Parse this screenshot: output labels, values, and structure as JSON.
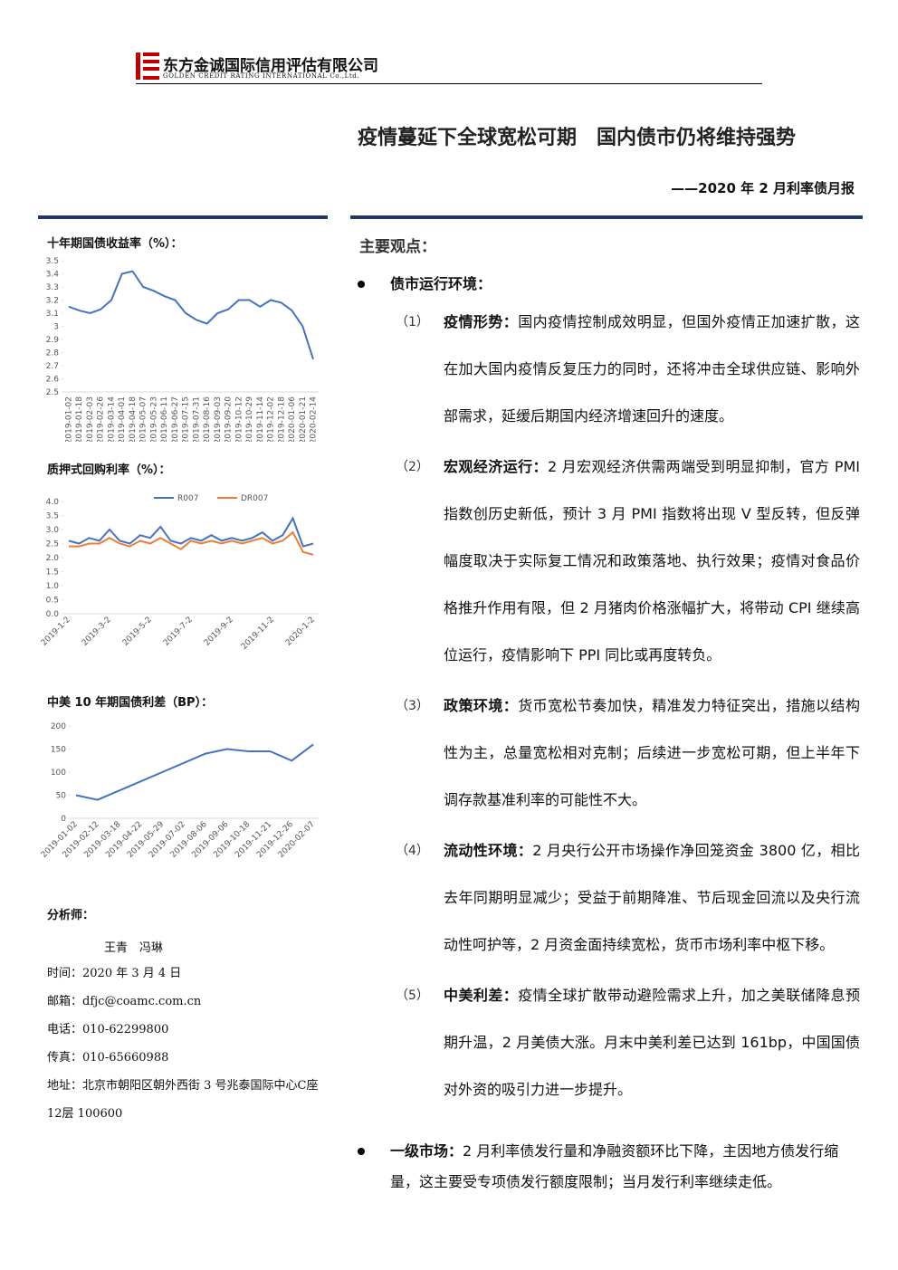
{
  "header": {
    "company_cn": "东方金诚国际信用评估有限公司",
    "company_en": "GOLDEN CREDIT RATING INTERNATIONAL Co.,Ltd."
  },
  "title": "疫情蔓延下全球宽松可期　国内债市仍将维持强势",
  "subtitle": "——2020 年 2 月利率债月报",
  "chart_data": [
    {
      "type": "line",
      "title": "十年期国债收益率（%）：",
      "categories": [
        "2019-01-02",
        "2019-01-18",
        "2019-02-03",
        "2019-02-26",
        "2019-03-14",
        "2019-04-01",
        "2019-04-18",
        "2019-05-07",
        "2019-05-23",
        "2019-06-11",
        "2019-06-27",
        "2019-07-15",
        "2019-07-31",
        "2019-08-16",
        "2019-09-03",
        "2019-09-20",
        "2019-10-12",
        "2019-10-29",
        "2019-11-14",
        "2019-12-02",
        "2019-12-18",
        "2020-01-06",
        "2020-01-21",
        "2020-02-14"
      ],
      "series": [
        {
          "color": "#4472c4",
          "values": [
            3.15,
            3.12,
            3.1,
            3.13,
            3.2,
            3.4,
            3.42,
            3.3,
            3.27,
            3.23,
            3.2,
            3.1,
            3.05,
            3.02,
            3.1,
            3.13,
            3.2,
            3.2,
            3.15,
            3.2,
            3.18,
            3.12,
            3.0,
            2.75
          ]
        }
      ],
      "ylim": [
        2.5,
        3.5
      ],
      "yticks": [
        2.5,
        2.6,
        2.7,
        2.8,
        2.9,
        3,
        3.1,
        3.2,
        3.3,
        3.4,
        3.5
      ],
      "label_rotation": -90,
      "grid": false
    },
    {
      "type": "line",
      "title": "质押式回购利率（%）：",
      "categories": [
        "2019-1-2",
        null,
        null,
        null,
        "2019-3-2",
        null,
        null,
        null,
        "2019-5-2",
        null,
        null,
        null,
        "2019-7-2",
        null,
        null,
        null,
        "2019-9-2",
        null,
        null,
        null,
        "2019-11-2",
        null,
        null,
        null,
        "2020-1-2"
      ],
      "series": [
        {
          "name": "R007",
          "color": "#4472c4",
          "values": [
            2.6,
            2.5,
            2.7,
            2.6,
            3.0,
            2.6,
            2.5,
            2.8,
            2.7,
            3.1,
            2.6,
            2.5,
            2.7,
            2.6,
            2.8,
            2.6,
            2.7,
            2.6,
            2.7,
            2.9,
            2.6,
            2.8,
            3.4,
            2.4,
            2.5
          ]
        },
        {
          "name": "DR007",
          "color": "#ed7d31",
          "values": [
            2.4,
            2.4,
            2.5,
            2.5,
            2.7,
            2.5,
            2.4,
            2.6,
            2.5,
            2.7,
            2.5,
            2.3,
            2.6,
            2.5,
            2.6,
            2.5,
            2.6,
            2.5,
            2.6,
            2.7,
            2.5,
            2.6,
            2.9,
            2.2,
            2.1
          ]
        }
      ],
      "ylim": [
        0,
        4
      ],
      "yticks": [
        {
          "value": 0,
          "label": "0.0"
        },
        {
          "value": 0.5,
          "label": "0.5"
        },
        {
          "value": 1,
          "label": "1.0"
        },
        {
          "value": 1.5,
          "label": "1.5"
        },
        {
          "value": 2,
          "label": "2.0"
        },
        {
          "value": 2.5,
          "label": "2.5"
        },
        {
          "value": 3,
          "label": "3.0"
        },
        {
          "value": 3.5,
          "label": "3.5"
        },
        {
          "value": 4,
          "label": "4.0"
        }
      ],
      "label_rotation": -45,
      "legend": "top",
      "grid": false
    },
    {
      "type": "line",
      "title": "中美 10 年期国债利差（BP）：",
      "categories": [
        "2019-01-02",
        "2019-02-12",
        "2019-03-18",
        "2019-04-22",
        "2019-05-29",
        "2019-07-02",
        "2019-08-06",
        "2019-09-06",
        "2019-10-18",
        "2019-11-21",
        "2019-12-26",
        "2020-02-07"
      ],
      "series": [
        {
          "color": "#4472c4",
          "values": [
            50,
            40,
            60,
            80,
            100,
            120,
            140,
            150,
            145,
            145,
            125,
            160
          ]
        }
      ],
      "ylim": [
        0,
        200
      ],
      "yticks": [
        0,
        50,
        100,
        150,
        200
      ],
      "label_rotation": -45,
      "grid": false
    }
  ],
  "sidebar": {
    "analyst_label": "分析师：",
    "analysts": "王青　冯琳",
    "contacts": [
      "时间：2020 年 3 月 4 日",
      "邮箱：dfjc@coamc.com.cn",
      "电话：010-62299800",
      "传真：010-65660988",
      "地址：北京市朝阳区朝外西街 3 号兆泰国际中心C座12层 100600"
    ]
  },
  "main": {
    "heading": "主要观点：",
    "sections": [
      {
        "title": "债市运行环境：",
        "items": [
          {
            "num": "（1）",
            "lead": "疫情形势：",
            "text": "国内疫情控制成效明显，但国外疫情正加速扩散，这在加大国内疫情反复压力的同时，还将冲击全球供应链、影响外部需求，延缓后期国内经济增速回升的速度。"
          },
          {
            "num": "（2）",
            "lead": "宏观经济运行：",
            "text": "2 月宏观经济供需两端受到明显抑制，官方 PMI 指数创历史新低，预计 3 月 PMI 指数将出现 V 型反转，但反弹幅度取决于实际复工情况和政策落地、执行效果；疫情对食品价格推升作用有限，但 2 月猪肉价格涨幅扩大，将带动 CPI 继续高位运行，疫情影响下 PPI 同比或再度转负。"
          },
          {
            "num": "（3）",
            "lead": "政策环境：",
            "text": "货币宽松节奏加快，精准发力特征突出，措施以结构性为主，总量宽松相对克制；后续进一步宽松可期，但上半年下调存款基准利率的可能性不大。"
          },
          {
            "num": "（4）",
            "lead": "流动性环境：",
            "text": "2 月央行公开市场操作净回笼资金 3800 亿，相比去年同期明显减少；受益于前期降准、节后现金回流以及央行流动性呵护等，2 月资金面持续宽松，货币市场利率中枢下移。"
          },
          {
            "num": "（5）",
            "lead": "中美利差：",
            "text": "疫情全球扩散带动避险需求上升，加之美联储降息预期升温，2 月美债大涨。月末中美利差已达到 161bp，中国国债对外资的吸引力进一步提升。"
          }
        ]
      },
      {
        "title": "一级市场：",
        "text": "2 月利率债发行量和净融资额环比下降，主因地方债发行缩量，这主要受专项债发行额度限制；当月发行利率继续走低。"
      }
    ]
  }
}
